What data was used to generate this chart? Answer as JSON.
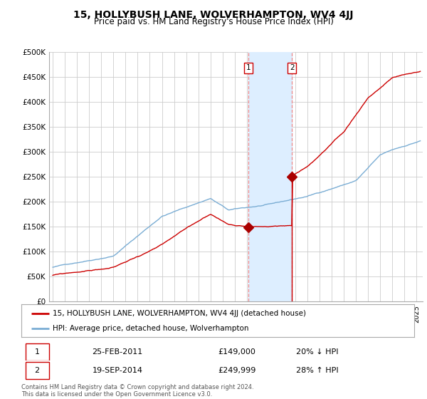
{
  "title": "15, HOLLYBUSH LANE, WOLVERHAMPTON, WV4 4JJ",
  "subtitle": "Price paid vs. HM Land Registry's House Price Index (HPI)",
  "title_fontsize": 10,
  "subtitle_fontsize": 8.5,
  "ylim": [
    0,
    500000
  ],
  "yticks": [
    0,
    50000,
    100000,
    150000,
    200000,
    250000,
    300000,
    350000,
    400000,
    450000,
    500000
  ],
  "ytick_labels": [
    "£0",
    "£50K",
    "£100K",
    "£150K",
    "£200K",
    "£250K",
    "£300K",
    "£350K",
    "£400K",
    "£450K",
    "£500K"
  ],
  "xlim_start": 1994.7,
  "xlim_end": 2025.5,
  "sale1_year": 2011.15,
  "sale1_price": 149000,
  "sale2_year": 2014.72,
  "sale2_price": 249999,
  "sale1_label": "25-FEB-2011",
  "sale1_price_str": "£149,000",
  "sale1_hpi_str": "20% ↓ HPI",
  "sale2_label": "19-SEP-2014",
  "sale2_price_str": "£249,999",
  "sale2_hpi_str": "28% ↑ HPI",
  "red_line_color": "#cc0000",
  "blue_line_color": "#7aadd4",
  "shade_color": "#ddeeff",
  "marker_color": "#aa0000",
  "background_color": "#ffffff",
  "grid_color": "#cccccc",
  "legend_label_red": "15, HOLLYBUSH LANE, WOLVERHAMPTON, WV4 4JJ (detached house)",
  "legend_label_blue": "HPI: Average price, detached house, Wolverhampton",
  "footnote": "Contains HM Land Registry data © Crown copyright and database right 2024.\nThis data is licensed under the Open Government Licence v3.0."
}
